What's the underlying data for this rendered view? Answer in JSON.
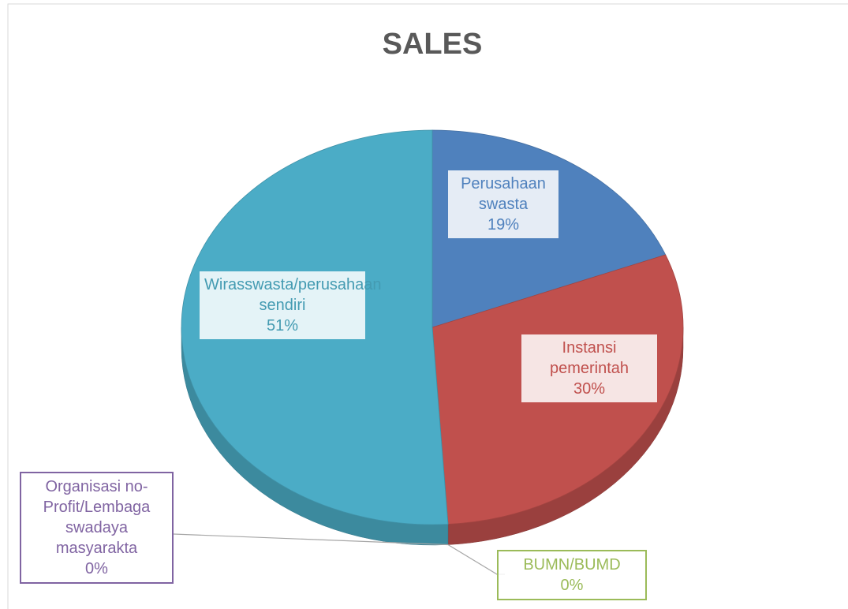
{
  "chart_data": {
    "type": "pie",
    "title": "SALES",
    "categories": [
      "Perusahaan swasta",
      "Instansi pemerintah",
      "BUMN/BUMD",
      "Organisasi no-Profit/Lembaga swadaya masyarakta",
      "Wirasswasta/perusahaan sendiri"
    ],
    "values": [
      19,
      30,
      0,
      0,
      51
    ],
    "value_labels": [
      "19%",
      "30%",
      "0%",
      "0%",
      "51%"
    ],
    "colors": [
      "#4f81bd",
      "#c0504d",
      "#9bbb59",
      "#8064a2",
      "#4bacc6"
    ]
  }
}
